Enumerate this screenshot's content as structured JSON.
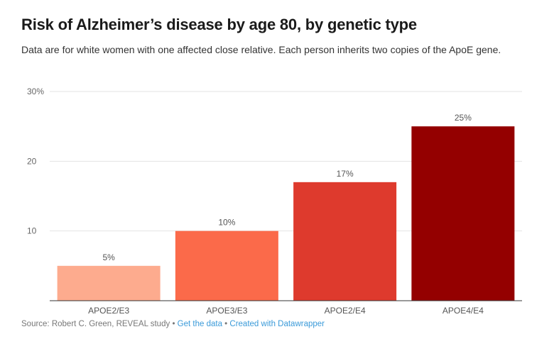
{
  "title": "Risk of Alzheimer’s disease by age 80, by genetic type",
  "subtitle": "Data are for white women with one affected close relative. Each person inherits two copies of the ApoE gene.",
  "footer": {
    "source": "Source: Robert C. Green, REVEAL study",
    "separator": "•",
    "get_data": "Get the data",
    "created_with": "Created with Datawrapper"
  },
  "chart_data": {
    "type": "bar",
    "categories": [
      "APOE2/E3",
      "APOE3/E3",
      "APOE2/E4",
      "APOE4/E4"
    ],
    "values": [
      5,
      10,
      17,
      25
    ],
    "value_labels": [
      "5%",
      "10%",
      "17%",
      "25%"
    ],
    "colors": [
      "#fdab8e",
      "#fb6a4a",
      "#de3a2d",
      "#940000"
    ],
    "ylim": [
      0,
      30
    ],
    "yticks": [
      10,
      20,
      30
    ],
    "ytick_labels": [
      "10",
      "20",
      "30%"
    ],
    "grid": true,
    "xlabel": "",
    "ylabel": ""
  }
}
